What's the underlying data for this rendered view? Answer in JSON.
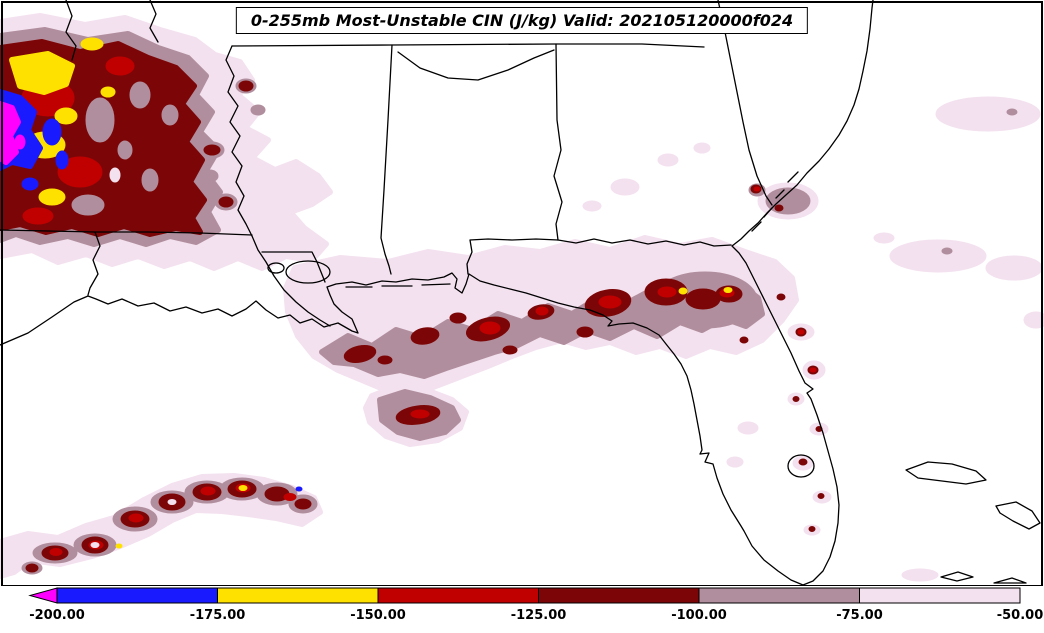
{
  "title": "0-255mb Most-Unstable CIN (J/kg) Valid: 202105120000f024",
  "colorbar": {
    "arrow_color": "#FF00FF",
    "segments": [
      {
        "from": "-200.00",
        "to": "-175.00",
        "color": "#1A1AFF"
      },
      {
        "from": "-175.00",
        "to": "-150.00",
        "color": "#FFE100"
      },
      {
        "from": "-150.00",
        "to": "-125.00",
        "color": "#C00000"
      },
      {
        "from": "-125.00",
        "to": "-100.00",
        "color": "#7C0607"
      },
      {
        "from": "-100.00",
        "to": "-75.00",
        "color": "#B18E9D"
      },
      {
        "from": "-75.00",
        "to": "-50.00",
        "color": "#F3E1EF"
      }
    ],
    "ticks": [
      "-200.00",
      "-175.00",
      "-150.00",
      "-125.00",
      "-100.00",
      "-75.00",
      "-50.00"
    ]
  },
  "palette": {
    "magenta": "#FF00FF",
    "blue": "#1A1AFF",
    "yellow": "#FFE100",
    "red": "#C00000",
    "maroon": "#7C0607",
    "mauve": "#B18E9D",
    "pink": "#F3E1EF",
    "line": "#000000",
    "background": "#FFFFFF"
  }
}
